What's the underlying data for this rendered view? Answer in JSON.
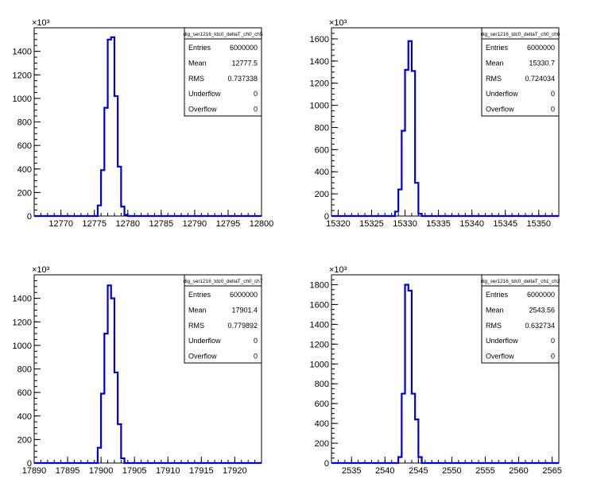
{
  "chart_data": [
    {
      "type": "histogram",
      "title": "dig_ser1216_tdc0_deltaT_ch0_ch5",
      "y_exponent_label": "×10³",
      "xlim": [
        12766,
        12800
      ],
      "ylim": [
        0,
        1600
      ],
      "xticks": [
        12770,
        12775,
        12780,
        12785,
        12790,
        12795,
        12800
      ],
      "yticks": [
        0,
        200,
        400,
        600,
        800,
        1000,
        1200,
        1400
      ],
      "bin_width": 0.5,
      "bins_x": [
        12775.5,
        12776,
        12776.5,
        12777,
        12777.5,
        12778,
        12778.5,
        12779,
        12779.5
      ],
      "bins_y": [
        90,
        390,
        920,
        1500,
        1520,
        1020,
        420,
        80,
        10
      ],
      "stats": [
        {
          "label": "Entries",
          "value": "6000000"
        },
        {
          "label": "Mean",
          "value": "12777.5"
        },
        {
          "label": "RMS",
          "value": "0.737338"
        },
        {
          "label": "Underflow",
          "value": "0"
        },
        {
          "label": "Overflow",
          "value": "0"
        }
      ]
    },
    {
      "type": "histogram",
      "title": "dig_ser1216_tdc0_deltaT_ch0_ch6",
      "y_exponent_label": "×10³",
      "xlim": [
        15319,
        15353
      ],
      "ylim": [
        0,
        1700
      ],
      "xticks": [
        15320,
        15325,
        15330,
        15335,
        15340,
        15345,
        15350
      ],
      "yticks": [
        0,
        200,
        400,
        600,
        800,
        1000,
        1200,
        1400,
        1600
      ],
      "bin_width": 0.5,
      "bins_x": [
        15328.5,
        15329,
        15329.5,
        15330,
        15330.5,
        15331,
        15331.5,
        15332
      ],
      "bins_y": [
        40,
        240,
        770,
        1320,
        1580,
        1310,
        300,
        20
      ],
      "stats": [
        {
          "label": "Entries",
          "value": "6000000"
        },
        {
          "label": "Mean",
          "value": "15330.7"
        },
        {
          "label": "RMS",
          "value": "0.724034"
        },
        {
          "label": "Underflow",
          "value": "0"
        },
        {
          "label": "Overflow",
          "value": "0"
        }
      ]
    },
    {
      "type": "histogram",
      "title": "dig_ser1216_tdc0_deltaT_ch0_ch7",
      "y_exponent_label": "×10³",
      "xlim": [
        17890,
        17924
      ],
      "ylim": [
        0,
        1600
      ],
      "xticks": [
        17890,
        17895,
        17900,
        17905,
        17910,
        17915,
        17920
      ],
      "yticks": [
        0,
        200,
        400,
        600,
        800,
        1000,
        1200,
        1400
      ],
      "bin_width": 0.5,
      "bins_x": [
        17899.5,
        17900,
        17900.5,
        17901,
        17901.5,
        17902,
        17902.5,
        17903
      ],
      "bins_y": [
        130,
        590,
        1100,
        1510,
        1400,
        770,
        330,
        40
      ],
      "stats": [
        {
          "label": "Entries",
          "value": "6000000"
        },
        {
          "label": "Mean",
          "value": "17901.4"
        },
        {
          "label": "RMS",
          "value": "0.779892"
        },
        {
          "label": "Underflow",
          "value": "0"
        },
        {
          "label": "Overflow",
          "value": "0"
        }
      ]
    },
    {
      "type": "histogram",
      "title": "dig_ser1216_tdc0_deltaT_ch1_ch2",
      "y_exponent_label": "×10³",
      "xlim": [
        2532,
        2566
      ],
      "ylim": [
        0,
        1900
      ],
      "xticks": [
        2535,
        2540,
        2545,
        2550,
        2555,
        2560,
        2565
      ],
      "yticks": [
        0,
        200,
        400,
        600,
        800,
        1000,
        1200,
        1400,
        1600,
        1800
      ],
      "bin_width": 0.5,
      "bins_x": [
        2542,
        2542.5,
        2543,
        2543.5,
        2544,
        2544.5,
        2545
      ],
      "bins_y": [
        60,
        700,
        1800,
        1740,
        700,
        440,
        60
      ],
      "stats": [
        {
          "label": "Entries",
          "value": "6000000"
        },
        {
          "label": "Mean",
          "value": "2543.56"
        },
        {
          "label": "RMS",
          "value": "0.632734"
        },
        {
          "label": "Underflow",
          "value": "0"
        },
        {
          "label": "Overflow",
          "value": "0"
        }
      ]
    }
  ],
  "colors": {
    "histogram_line": "#0000d0",
    "axis": "#000000",
    "stats_box_border": "#000000",
    "background": "#ffffff"
  }
}
